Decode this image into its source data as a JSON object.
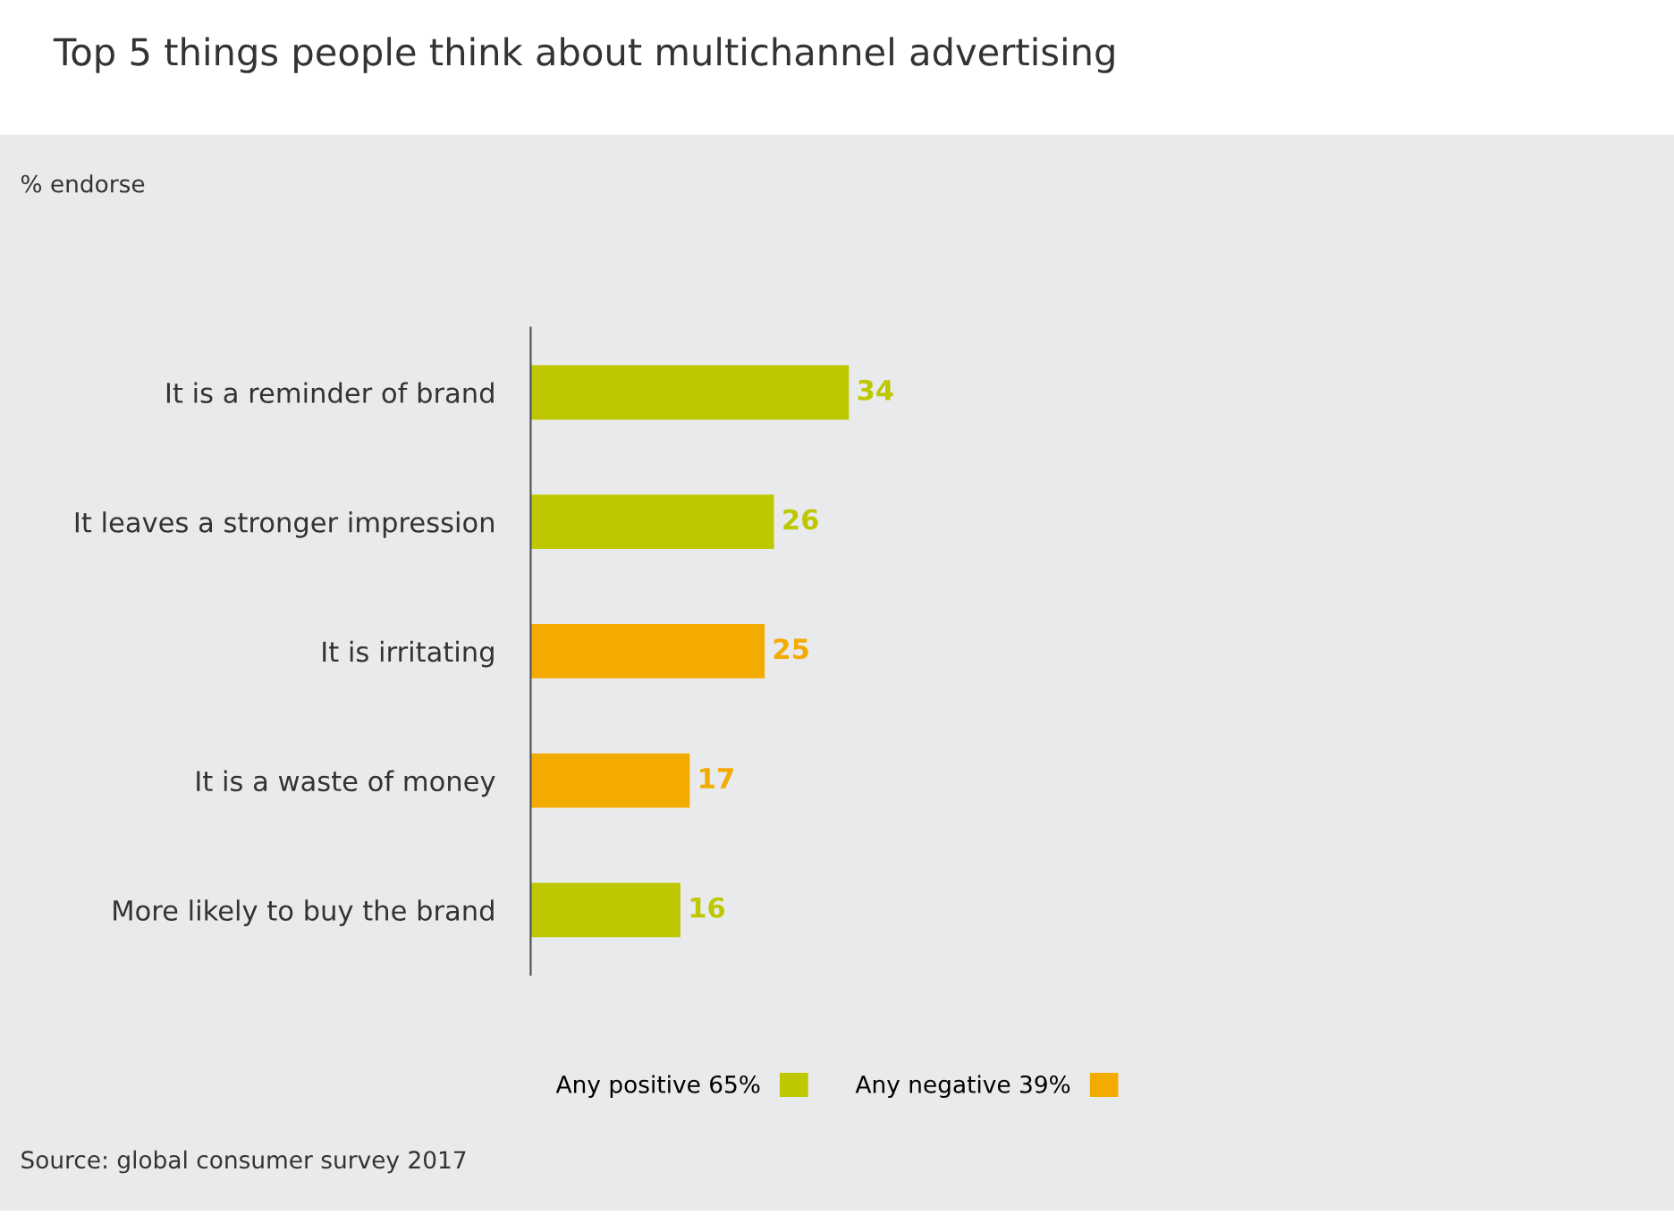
{
  "chart_data": {
    "type": "bar",
    "orientation": "horizontal",
    "title": "Top 5 things people think about multichannel advertising",
    "subtitle": "% endorse",
    "categories": [
      "It is a reminder of brand",
      "It leaves a stronger impression",
      "It is irritating",
      "It is a waste of money",
      "More likely to buy the brand"
    ],
    "series": [
      {
        "name": "Any positive 65%",
        "color": "#bdc800",
        "values": [
          34,
          26,
          null,
          null,
          16
        ]
      },
      {
        "name": "Any negative 39%",
        "color": "#f3ab00",
        "values": [
          null,
          null,
          25,
          17,
          null
        ]
      }
    ],
    "data_labels": true,
    "legend": "bottom",
    "grid": false,
    "tick_labels": "y",
    "annotations": [
      "Source: global consumer survey 2017"
    ]
  }
}
